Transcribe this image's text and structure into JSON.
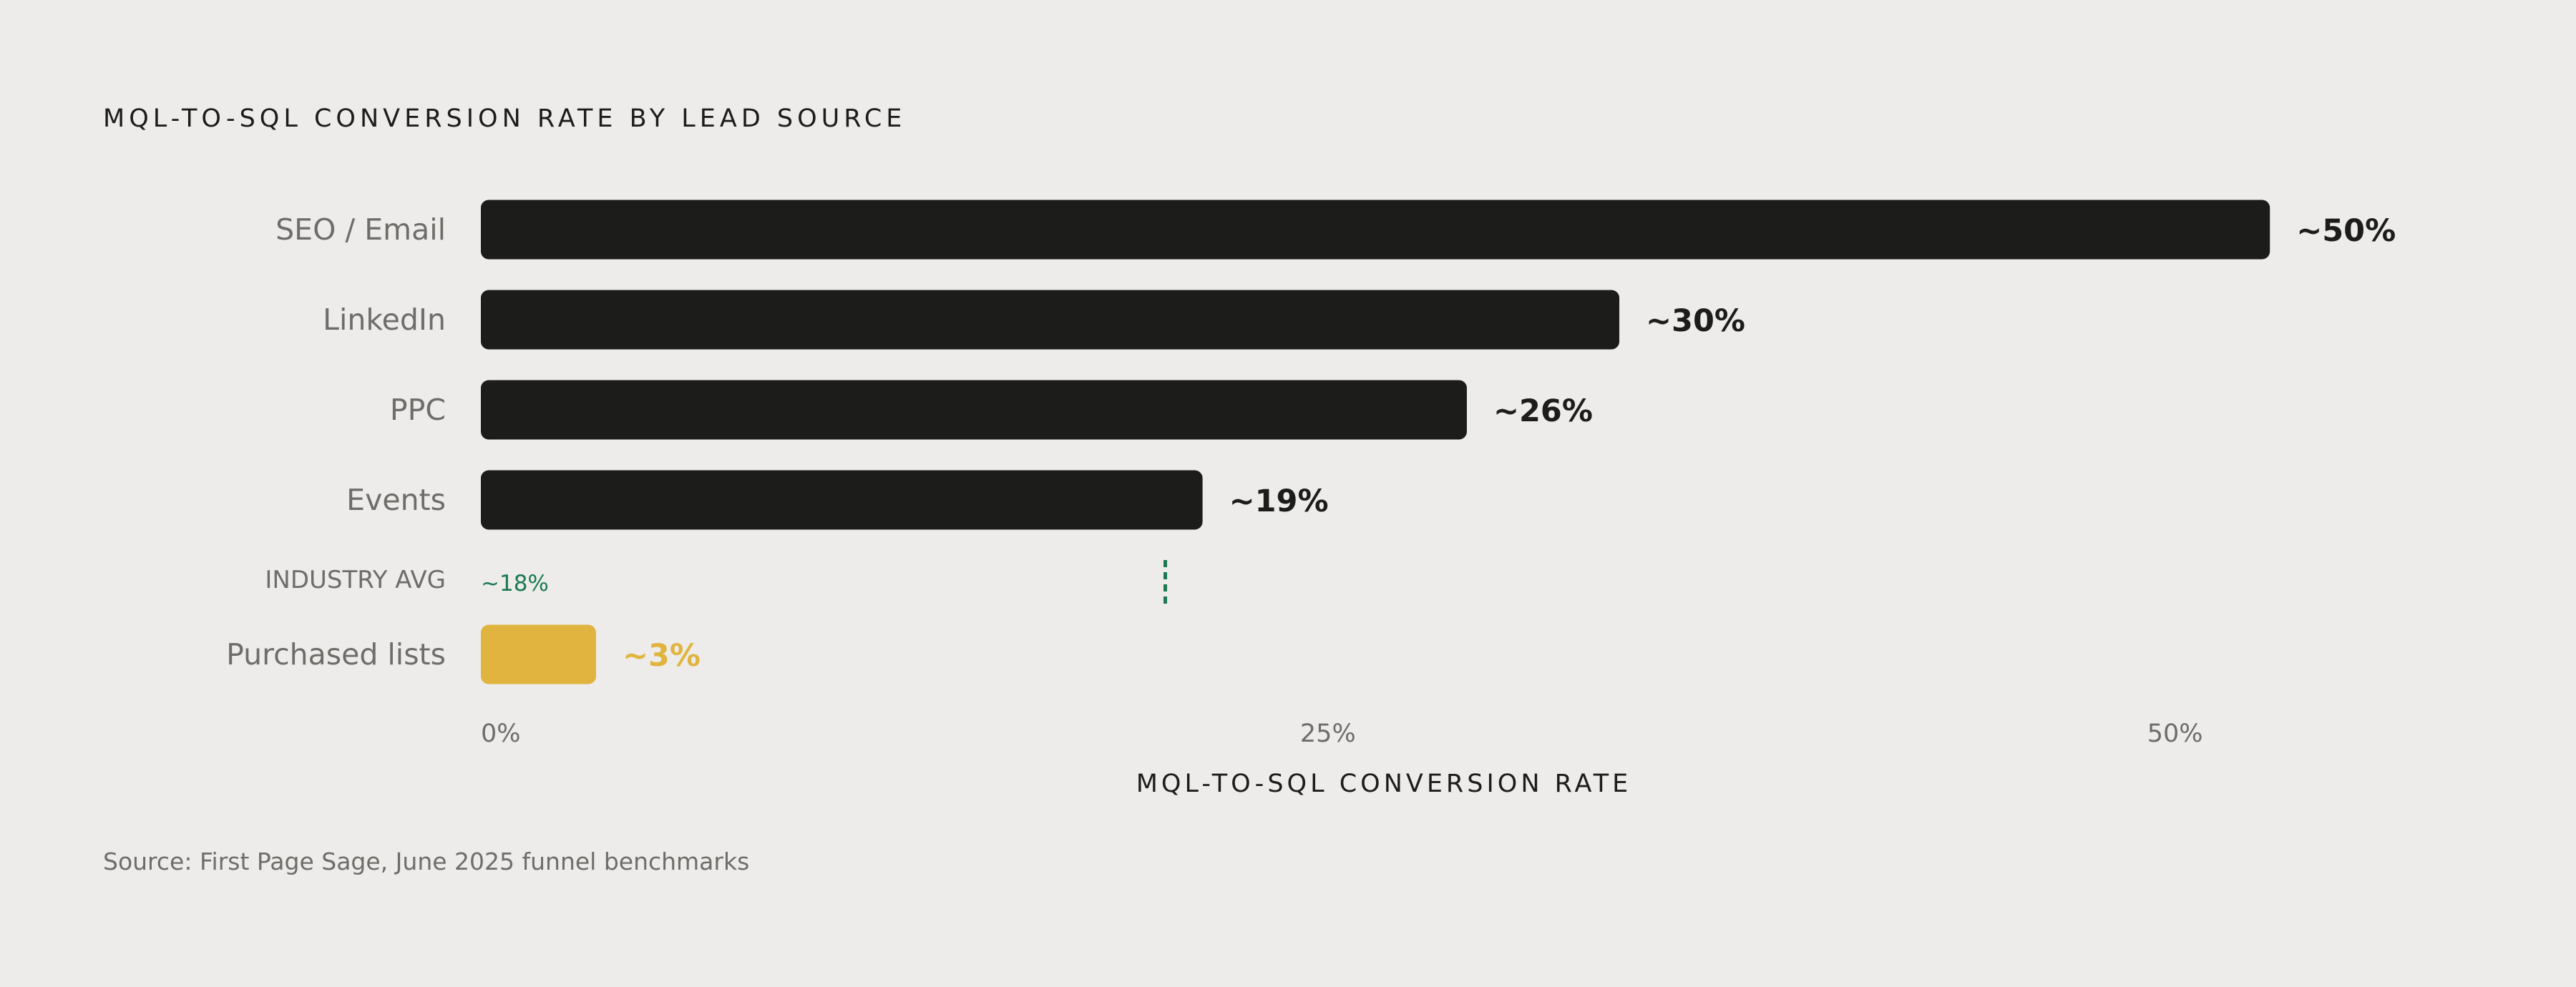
{
  "title": "MQL-TO-SQL CONVERSION RATE BY LEAD SOURCE",
  "source": "Source: First Page Sage, June 2025 funnel benchmarks",
  "colors": {
    "background": "#edecea",
    "bar": "#1c1c1a",
    "highlight": "#e0b43f",
    "reference": "#1a7a52",
    "label_text": "#6f6d69",
    "value_text": "#1c1c1a"
  },
  "chart_data": {
    "type": "bar",
    "orientation": "horizontal",
    "title": "MQL-TO-SQL CONVERSION RATE BY LEAD SOURCE",
    "xlabel": "MQL-TO-SQL CONVERSION RATE",
    "ylabel": "",
    "xlim": [
      0,
      52.5
    ],
    "xticks": [
      0,
      25,
      50
    ],
    "xtick_labels": [
      "0%",
      "25%",
      "50%"
    ],
    "grid": false,
    "legend": "none",
    "rows": [
      {
        "kind": "bar",
        "category": "SEO / Email",
        "value": 52.8,
        "label": "~50%",
        "highlight": false
      },
      {
        "kind": "bar",
        "category": "LinkedIn",
        "value": 33.6,
        "label": "~30%",
        "highlight": false
      },
      {
        "kind": "bar",
        "category": "PPC",
        "value": 29.1,
        "label": "~26%",
        "highlight": false
      },
      {
        "kind": "bar",
        "category": "Events",
        "value": 21.3,
        "label": "~19%",
        "highlight": false
      },
      {
        "kind": "reference",
        "category": "INDUSTRY AVG",
        "value": 20.2,
        "label": "~18%"
      },
      {
        "kind": "bar",
        "category": "Purchased lists",
        "value": 3.4,
        "label": "~3%",
        "highlight": true
      }
    ]
  }
}
